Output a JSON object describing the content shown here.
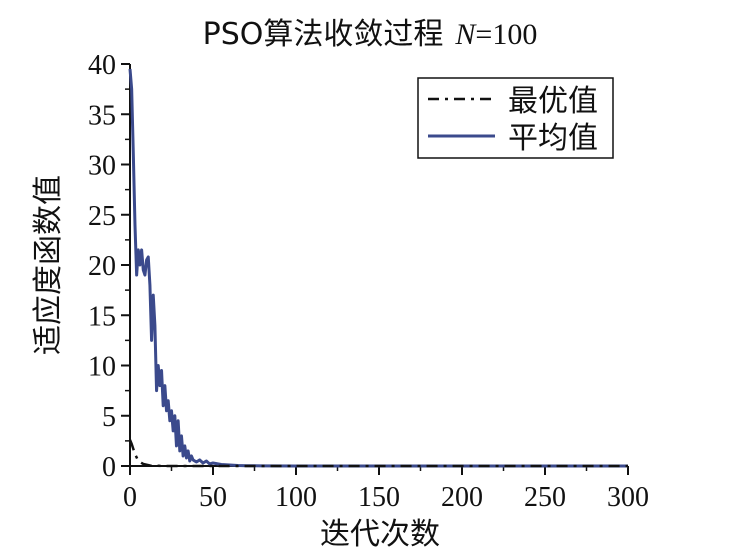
{
  "chart_data": {
    "type": "line",
    "title": "PSO算法收敛过程",
    "title_param_symbol": "N",
    "title_param_value": "=100",
    "xlabel": "迭代次数",
    "ylabel": "适应度函数值",
    "xlim": [
      0,
      300
    ],
    "ylim": [
      0,
      40
    ],
    "x_ticks": [
      0,
      50,
      100,
      150,
      200,
      250,
      300
    ],
    "y_ticks": [
      0,
      5,
      10,
      15,
      20,
      25,
      30,
      35,
      40
    ],
    "grid": false,
    "legend_position": "top-right",
    "series": [
      {
        "name": "最优值",
        "color": "#111111",
        "style": "dash-dot",
        "x": [
          0,
          1,
          3,
          5,
          8,
          12,
          20,
          40,
          60,
          100,
          150,
          200,
          250,
          300
        ],
        "y": [
          2.6,
          2.2,
          1.2,
          0.5,
          0.2,
          0.05,
          0,
          0,
          0,
          0,
          0,
          0,
          0,
          0
        ]
      },
      {
        "name": "平均值",
        "color": "#3b4a8c",
        "style": "solid",
        "x": [
          0,
          1,
          2,
          3,
          4,
          5,
          6,
          7,
          8,
          9,
          10,
          11,
          12,
          13,
          14,
          15,
          16,
          17,
          18,
          19,
          20,
          21,
          22,
          23,
          24,
          25,
          26,
          27,
          28,
          29,
          30,
          31,
          32,
          33,
          34,
          35,
          36,
          37,
          38,
          40,
          42,
          44,
          46,
          48,
          50,
          55,
          60,
          65,
          70,
          80,
          100,
          150,
          200,
          250,
          300
        ],
        "y": [
          39.5,
          37.5,
          31.0,
          24.0,
          19.0,
          21.5,
          20.0,
          21.5,
          19.5,
          19.0,
          20.5,
          20.8,
          18.0,
          12.5,
          17.0,
          14.0,
          7.5,
          10.0,
          8.0,
          9.5,
          6.0,
          8.0,
          5.5,
          6.5,
          4.5,
          5.5,
          3.5,
          5.0,
          2.0,
          4.5,
          1.5,
          3.0,
          1.0,
          2.0,
          0.8,
          1.5,
          0.5,
          1.0,
          0.6,
          0.4,
          0.6,
          0.3,
          0.5,
          0.2,
          0.3,
          0.15,
          0.1,
          0.05,
          0.03,
          0.01,
          0,
          0,
          0,
          0,
          0
        ]
      }
    ]
  }
}
